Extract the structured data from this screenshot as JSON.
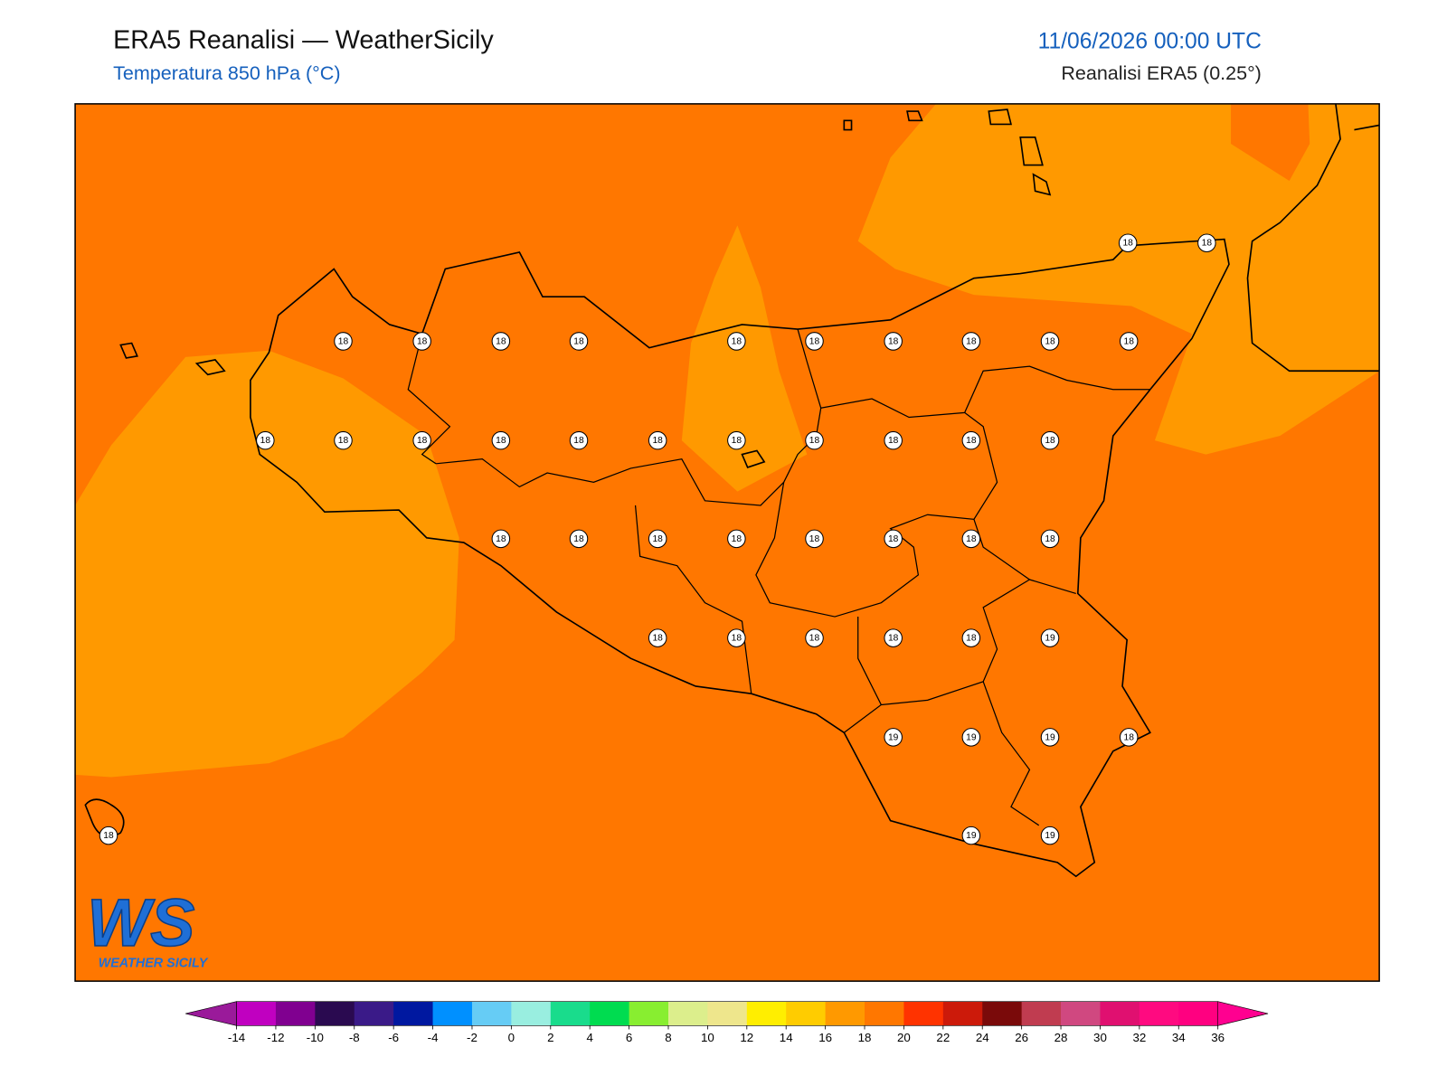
{
  "header": {
    "title": "ERA5 Reanalisi — WeatherSicily",
    "subtitle": "Temperatura 850 hPa (°C)",
    "datetime": "11/06/2026 00:00 UTC",
    "source": "Reanalisi ERA5 (0.25°)"
  },
  "stations": [
    18,
    18,
    18,
    18,
    18,
    18,
    18,
    18,
    18,
    18,
    18,
    18,
    18,
    18,
    18,
    18,
    18,
    18,
    18,
    18,
    18,
    18,
    18,
    18,
    18,
    18,
    18,
    18,
    18,
    18,
    18,
    18,
    18,
    18,
    18,
    18,
    19,
    19,
    19,
    19,
    18,
    18,
    19,
    19
  ],
  "colorbar": {
    "ticks": [
      -14,
      -12,
      -10,
      -8,
      -6,
      -4,
      -2,
      0,
      2,
      4,
      6,
      8,
      10,
      12,
      14,
      16,
      18,
      20,
      22,
      24,
      26,
      28,
      30,
      32,
      34,
      36
    ],
    "colors": [
      "#c000c0",
      "#800090",
      "#2a0a50",
      "#3a1a88",
      "#0018a0",
      "#0090ff",
      "#66ccf5",
      "#99eee0",
      "#19dc8c",
      "#00dc50",
      "#88ee30",
      "#dcee8c",
      "#eee68c",
      "#ffee00",
      "#ffcc00",
      "#ff9900",
      "#ff7700",
      "#ff3300",
      "#cc1a0a",
      "#7a0a0a",
      "#c03c50",
      "#d04880",
      "#e01070",
      "#ff0a80",
      "#ff0080"
    ],
    "extend_colors": [
      "#9a1a9a",
      "#ff0090"
    ]
  },
  "logo": {
    "mark": "WS",
    "text": "WEATHER SICILY"
  }
}
